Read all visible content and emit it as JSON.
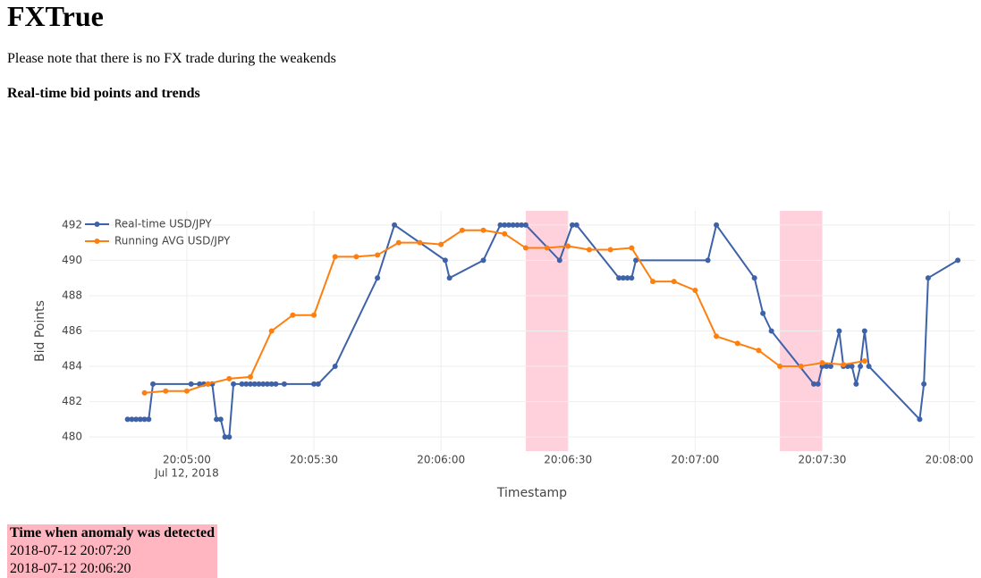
{
  "header": {
    "title": "FXTrue",
    "note": "Please note that there is no FX trade during the weakends",
    "subtitle": "Real-time bid points and trends"
  },
  "chart_data": {
    "type": "line",
    "x_title": "Timestamp",
    "y_title": "Bid Points",
    "x_date_label": "Jul 12, 2018",
    "legend": "top-left",
    "grid": true,
    "xlim": [
      "2018-07-12 20:04:37",
      "2018-07-12 20:08:06"
    ],
    "xticks": [
      {
        "value": "2018-07-12 20:05:00",
        "label": "20:05:00"
      },
      {
        "value": "2018-07-12 20:05:30",
        "label": "20:05:30"
      },
      {
        "value": "2018-07-12 20:06:00",
        "label": "20:06:00"
      },
      {
        "value": "2018-07-12 20:06:30",
        "label": "20:06:30"
      },
      {
        "value": "2018-07-12 20:07:00",
        "label": "20:07:00"
      },
      {
        "value": "2018-07-12 20:07:30",
        "label": "20:07:30"
      },
      {
        "value": "2018-07-12 20:08:00",
        "label": "20:08:00"
      }
    ],
    "ylim": [
      479.2,
      492.8
    ],
    "yticks": [
      480,
      482,
      484,
      486,
      488,
      490,
      492
    ],
    "anomalies": [
      {
        "x0": "2018-07-12 20:06:20",
        "x1": "2018-07-12 20:06:30",
        "color": "#ffd1dc"
      },
      {
        "x0": "2018-07-12 20:07:20",
        "x1": "2018-07-12 20:07:30",
        "color": "#ffd1dc"
      }
    ],
    "series": [
      {
        "name": "Real-time USD/JPY",
        "color": "#3d62a9",
        "x": [
          "2018-07-12 20:04:46",
          "2018-07-12 20:04:47",
          "2018-07-12 20:04:48",
          "2018-07-12 20:04:49",
          "2018-07-12 20:04:50",
          "2018-07-12 20:04:51",
          "2018-07-12 20:04:52",
          "2018-07-12 20:05:01",
          "2018-07-12 20:05:03",
          "2018-07-12 20:05:04",
          "2018-07-12 20:05:05",
          "2018-07-12 20:05:06",
          "2018-07-12 20:05:07",
          "2018-07-12 20:05:08",
          "2018-07-12 20:05:09",
          "2018-07-12 20:05:10",
          "2018-07-12 20:05:11",
          "2018-07-12 20:05:13",
          "2018-07-12 20:05:14",
          "2018-07-12 20:05:15",
          "2018-07-12 20:05:16",
          "2018-07-12 20:05:17",
          "2018-07-12 20:05:18",
          "2018-07-12 20:05:19",
          "2018-07-12 20:05:20",
          "2018-07-12 20:05:21",
          "2018-07-12 20:05:23",
          "2018-07-12 20:05:30",
          "2018-07-12 20:05:31",
          "2018-07-12 20:05:35",
          "2018-07-12 20:05:45",
          "2018-07-12 20:05:49",
          "2018-07-12 20:06:01",
          "2018-07-12 20:06:02",
          "2018-07-12 20:06:10",
          "2018-07-12 20:06:14",
          "2018-07-12 20:06:15",
          "2018-07-12 20:06:16",
          "2018-07-12 20:06:17",
          "2018-07-12 20:06:18",
          "2018-07-12 20:06:19",
          "2018-07-12 20:06:20",
          "2018-07-12 20:06:28",
          "2018-07-12 20:06:31",
          "2018-07-12 20:06:32",
          "2018-07-12 20:06:42",
          "2018-07-12 20:06:43",
          "2018-07-12 20:06:44",
          "2018-07-12 20:06:45",
          "2018-07-12 20:06:46",
          "2018-07-12 20:07:03",
          "2018-07-12 20:07:05",
          "2018-07-12 20:07:14",
          "2018-07-12 20:07:16",
          "2018-07-12 20:07:18",
          "2018-07-12 20:07:28",
          "2018-07-12 20:07:29",
          "2018-07-12 20:07:30",
          "2018-07-12 20:07:31",
          "2018-07-12 20:07:32",
          "2018-07-12 20:07:34",
          "2018-07-12 20:07:35",
          "2018-07-12 20:07:36",
          "2018-07-12 20:07:37",
          "2018-07-12 20:07:38",
          "2018-07-12 20:07:39",
          "2018-07-12 20:07:40",
          "2018-07-12 20:07:41",
          "2018-07-12 20:07:53",
          "2018-07-12 20:07:54",
          "2018-07-12 20:07:55",
          "2018-07-12 20:08:02"
        ],
        "values": [
          481,
          481,
          481,
          481,
          481,
          481,
          483,
          483,
          483,
          483,
          483,
          483,
          481,
          481,
          480,
          480,
          483,
          483,
          483,
          483,
          483,
          483,
          483,
          483,
          483,
          483,
          483,
          483,
          483,
          484,
          489,
          492,
          490,
          489,
          490,
          492,
          492,
          492,
          492,
          492,
          492,
          492,
          490,
          492,
          492,
          489,
          489,
          489,
          489,
          490,
          490,
          492,
          489,
          487,
          486,
          483,
          483,
          484,
          484,
          484,
          486,
          484,
          484,
          484,
          483,
          484,
          486,
          484,
          481,
          483,
          489,
          490
        ]
      },
      {
        "name": "Running AVG USD/JPY",
        "color": "#ff7f0e",
        "x": [
          "2018-07-12 20:04:50",
          "2018-07-12 20:04:55",
          "2018-07-12 20:05:00",
          "2018-07-12 20:05:05",
          "2018-07-12 20:05:10",
          "2018-07-12 20:05:15",
          "2018-07-12 20:05:20",
          "2018-07-12 20:05:25",
          "2018-07-12 20:05:30",
          "2018-07-12 20:05:35",
          "2018-07-12 20:05:40",
          "2018-07-12 20:05:45",
          "2018-07-12 20:05:50",
          "2018-07-12 20:05:55",
          "2018-07-12 20:06:00",
          "2018-07-12 20:06:05",
          "2018-07-12 20:06:10",
          "2018-07-12 20:06:15",
          "2018-07-12 20:06:20",
          "2018-07-12 20:06:25",
          "2018-07-12 20:06:30",
          "2018-07-12 20:06:35",
          "2018-07-12 20:06:40",
          "2018-07-12 20:06:45",
          "2018-07-12 20:06:50",
          "2018-07-12 20:06:55",
          "2018-07-12 20:07:00",
          "2018-07-12 20:07:05",
          "2018-07-12 20:07:10",
          "2018-07-12 20:07:15",
          "2018-07-12 20:07:20",
          "2018-07-12 20:07:25",
          "2018-07-12 20:07:30",
          "2018-07-12 20:07:35",
          "2018-07-12 20:07:40"
        ],
        "values": [
          482.5,
          482.6,
          482.6,
          483.0,
          483.3,
          483.4,
          486.0,
          486.9,
          486.9,
          490.2,
          490.2,
          490.3,
          491.0,
          491.0,
          490.9,
          491.7,
          491.7,
          491.5,
          490.7,
          490.7,
          490.8,
          490.6,
          490.6,
          490.7,
          488.8,
          488.8,
          488.3,
          485.7,
          485.3,
          484.9,
          484.0,
          484.0,
          484.2,
          484.1,
          484.3
        ]
      }
    ]
  },
  "table": {
    "header": "Time when anomaly was detected",
    "rows": [
      "2018-07-12 20:07:20",
      "2018-07-12 20:06:20"
    ]
  }
}
